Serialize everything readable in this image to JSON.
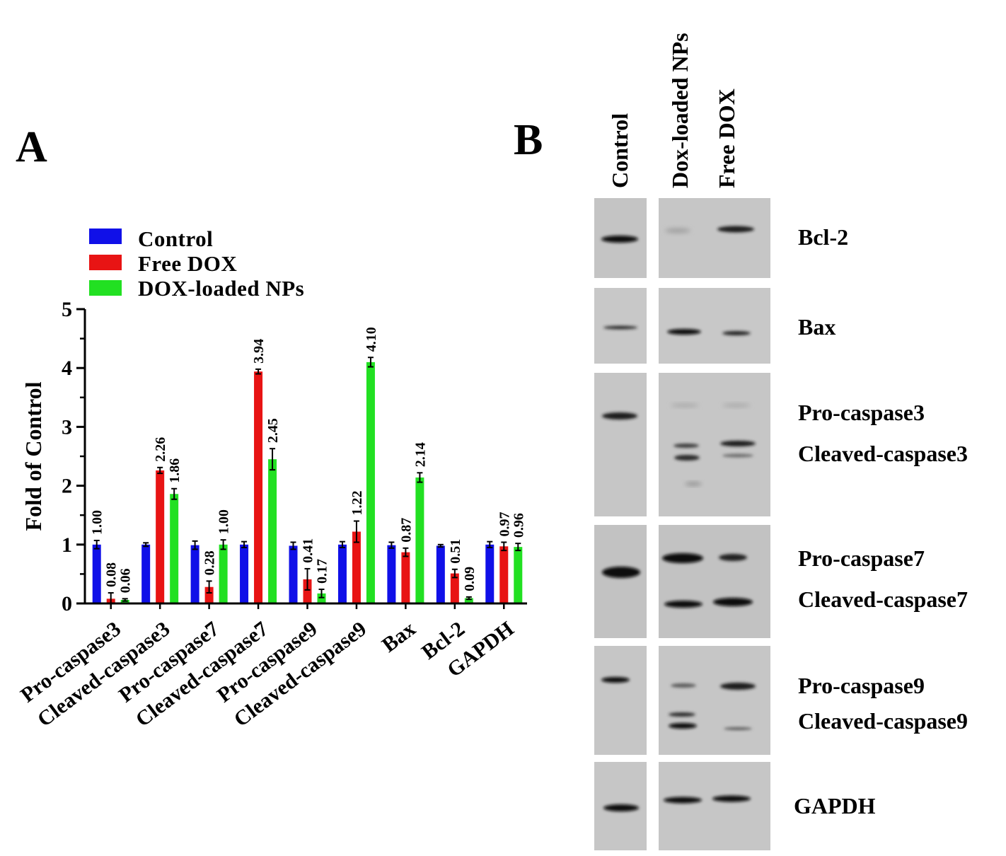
{
  "panels": {
    "a_letter": "A",
    "b_letter": "B"
  },
  "chart_data": {
    "type": "bar",
    "ylabel": "Fold of Control",
    "xlabel": "",
    "ylim": [
      0,
      5
    ],
    "yticks": [
      "0",
      "1",
      "2",
      "3",
      "4",
      "5"
    ],
    "categories": [
      "Pro-caspase3",
      "Cleaved-caspase3",
      "Pro-caspase7",
      "Cleaved-caspase7",
      "Pro-caspase9",
      "Cleaved-caspase9",
      "Bax",
      "Bcl-2",
      "GAPDH"
    ],
    "series": [
      {
        "name": "Control",
        "color": "#1010e8",
        "values": [
          1.0,
          1.0,
          0.99,
          1.0,
          0.98,
          1.0,
          0.99,
          0.98,
          1.0
        ],
        "errors": [
          0.07,
          0.03,
          0.07,
          0.05,
          0.06,
          0.05,
          0.05,
          0.02,
          0.05
        ],
        "labels": [
          "1.00",
          null,
          null,
          null,
          null,
          null,
          null,
          null,
          null
        ]
      },
      {
        "name": "Free DOX",
        "color": "#e81414",
        "values": [
          0.08,
          2.26,
          0.28,
          3.94,
          0.41,
          1.22,
          0.87,
          0.51,
          0.97
        ],
        "errors": [
          0.1,
          0.05,
          0.1,
          0.04,
          0.18,
          0.18,
          0.07,
          0.07,
          0.07
        ],
        "labels": [
          "0.08",
          "2.26",
          "0.28",
          "3.94",
          "0.41",
          "1.22",
          "0.87",
          "0.51",
          "0.97"
        ]
      },
      {
        "name": "DOX-loaded NPs",
        "color": "#22e022",
        "values": [
          0.06,
          1.86,
          1.0,
          2.45,
          0.17,
          4.1,
          2.14,
          0.09,
          0.96
        ],
        "errors": [
          0.02,
          0.09,
          0.08,
          0.18,
          0.07,
          0.08,
          0.08,
          0.02,
          0.06
        ],
        "labels": [
          "0.06",
          "1.86",
          "1.00",
          "2.45",
          "0.17",
          "4.10",
          "2.14",
          "0.09",
          "0.96"
        ]
      }
    ],
    "legend": "top-left"
  },
  "blot": {
    "lanes": [
      "Control",
      "Dox-loaded NPs",
      "Free DOX"
    ],
    "rows": [
      {
        "labels": [
          "Bcl-2"
        ]
      },
      {
        "labels": [
          "Bax"
        ]
      },
      {
        "labels": [
          "Pro-caspase3",
          "Cleaved-caspase3"
        ]
      },
      {
        "labels": [
          "Pro-caspase7",
          "Cleaved-caspase7"
        ]
      },
      {
        "labels": [
          "Pro-caspase9",
          "Cleaved-caspase9"
        ]
      },
      {
        "labels": [
          "GAPDH"
        ]
      }
    ]
  }
}
